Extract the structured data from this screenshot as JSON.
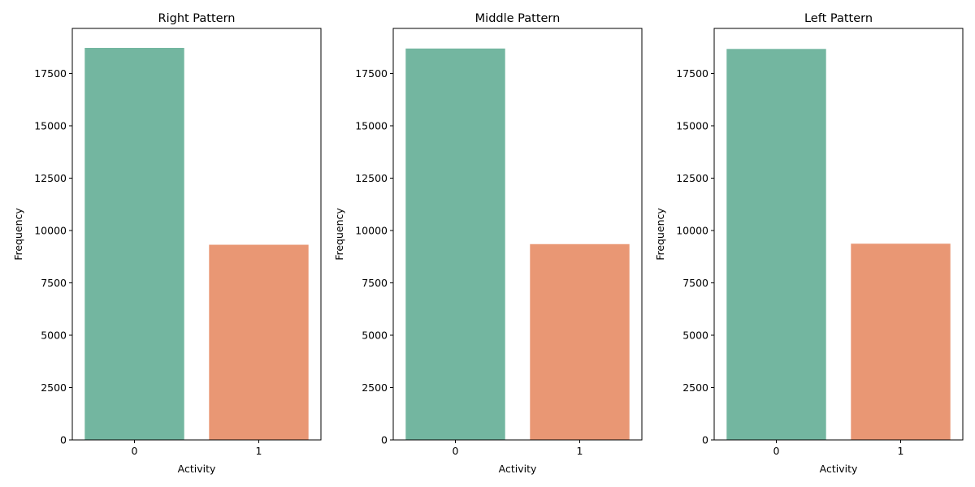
{
  "chart_data": [
    {
      "type": "bar",
      "title": "Right Pattern",
      "xlabel": "Activity",
      "ylabel": "Frequency",
      "categories": [
        "0",
        "1"
      ],
      "values": [
        18720,
        9320
      ],
      "colors": [
        "#73b6a0",
        "#e99774"
      ],
      "yticks": [
        0,
        2500,
        5000,
        7500,
        10000,
        12500,
        15000,
        17500
      ],
      "ylim": [
        0,
        19650
      ],
      "grid": false
    },
    {
      "type": "bar",
      "title": "Middle Pattern",
      "xlabel": "Activity",
      "ylabel": "Frequency",
      "categories": [
        "0",
        "1"
      ],
      "values": [
        18690,
        9350
      ],
      "colors": [
        "#73b6a0",
        "#e99774"
      ],
      "yticks": [
        0,
        2500,
        5000,
        7500,
        10000,
        12500,
        15000,
        17500
      ],
      "ylim": [
        0,
        19650
      ],
      "grid": false
    },
    {
      "type": "bar",
      "title": "Left Pattern",
      "xlabel": "Activity",
      "ylabel": "Frequency",
      "categories": [
        "0",
        "1"
      ],
      "values": [
        18670,
        9370
      ],
      "colors": [
        "#73b6a0",
        "#e99774"
      ],
      "yticks": [
        0,
        2500,
        5000,
        7500,
        10000,
        12500,
        15000,
        17500
      ],
      "ylim": [
        0,
        19650
      ],
      "grid": false
    }
  ]
}
